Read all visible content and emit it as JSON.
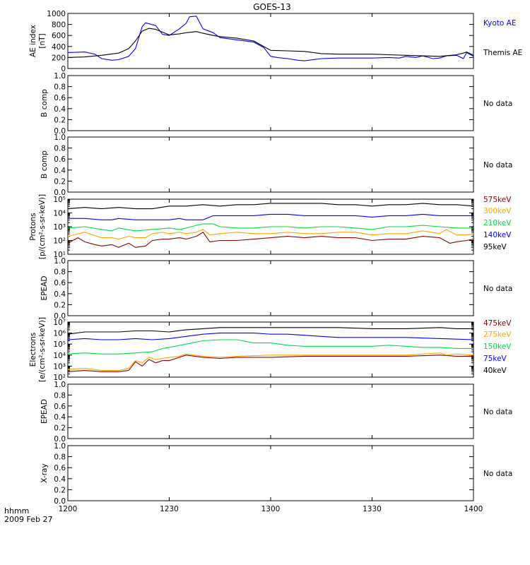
{
  "chart_data": {
    "type": "line",
    "title": "GOES-13",
    "x_axis": {
      "label_line1": "hhmm",
      "label_line2": "2009 Feb 27",
      "range": [
        1200,
        1400
      ],
      "ticks": [
        {
          "value": 1200,
          "label": "1200"
        },
        {
          "value": 1230,
          "label": "1230"
        },
        {
          "value": 1300,
          "label": "1300"
        },
        {
          "value": 1330,
          "label": "1330"
        },
        {
          "value": 1400,
          "label": "1400"
        }
      ]
    },
    "panels": [
      {
        "id": "ae",
        "ylabel_lines": [
          "AE index",
          "[nT]"
        ],
        "scale": "linear",
        "ylim": [
          0,
          1000
        ],
        "ticks": [
          "0",
          "200",
          "400",
          "600",
          "800",
          "1000"
        ],
        "tick_values": [
          0,
          200,
          400,
          600,
          800,
          1000
        ],
        "note": "",
        "series": [
          {
            "name": "Kyoto AE",
            "color": "#0000ff",
            "x": [
              1200,
              1205,
              1208,
              1210,
              1213,
              1215,
              1218,
              1220,
              1222,
              1223,
              1226,
              1228,
              1230,
              1233,
              1235,
              1236,
              1238,
              1240,
              1243,
              1245,
              1250,
              1255,
              1258,
              1300,
              1302,
              1305,
              1308,
              1310,
              1315,
              1320,
              1325,
              1330,
              1335,
              1338,
              1340,
              1343,
              1345,
              1348,
              1350,
              1352,
              1355,
              1357,
              1358,
              1400
            ],
            "values": [
              290,
              300,
              260,
              180,
              150,
              160,
              220,
              360,
              760,
              830,
              780,
              620,
              600,
              720,
              820,
              940,
              950,
              720,
              650,
              560,
              520,
              480,
              380,
              220,
              200,
              180,
              150,
              140,
              180,
              190,
              190,
              190,
              200,
              190,
              220,
              200,
              230,
              180,
              190,
              230,
              240,
              180,
              290,
              220
            ]
          },
          {
            "name": "Themis AE",
            "color": "#000000",
            "x": [
              1200,
              1205,
              1210,
              1215,
              1218,
              1220,
              1222,
              1224,
              1226,
              1228,
              1230,
              1233,
              1235,
              1238,
              1240,
              1243,
              1245,
              1250,
              1255,
              1300,
              1305,
              1310,
              1315,
              1320,
              1330,
              1335,
              1340,
              1345,
              1350,
              1355,
              1357,
              1358,
              1400
            ],
            "values": [
              200,
              210,
              240,
              280,
              360,
              500,
              680,
              730,
              710,
              660,
              610,
              630,
              650,
              670,
              640,
              600,
              580,
              550,
              500,
              330,
              320,
              310,
              270,
              260,
              260,
              250,
              240,
              230,
              220,
              250,
              280,
              300,
              240
            ]
          }
        ]
      },
      {
        "id": "b1",
        "ylabel_lines": [
          "B comp"
        ],
        "scale": "linear",
        "ylim": [
          0,
          1
        ],
        "ticks": [
          "0.0",
          "0.2",
          "0.4",
          "0.6",
          "0.8",
          "1.0"
        ],
        "tick_values": [
          0,
          0.2,
          0.4,
          0.6,
          0.8,
          1.0
        ],
        "note": "No data",
        "series": []
      },
      {
        "id": "b2",
        "ylabel_lines": [
          "B comp"
        ],
        "scale": "linear",
        "ylim": [
          0,
          1
        ],
        "ticks": [
          "0.0",
          "0.2",
          "0.4",
          "0.6",
          "0.8",
          "1.0"
        ],
        "tick_values": [
          0,
          0.2,
          0.4,
          0.6,
          0.8,
          1.0
        ],
        "note": "No data",
        "series": []
      },
      {
        "id": "protons",
        "ylabel_lines": [
          "Protons",
          "[p/(cm²-s-sr-keV)]"
        ],
        "scale": "log",
        "ylim": [
          1,
          5
        ],
        "ticks": [
          "10¹",
          "10²",
          "10³",
          "10⁴",
          "10⁵"
        ],
        "tick_values": [
          1,
          2,
          3,
          4,
          5
        ],
        "note": "",
        "series": [
          {
            "name": "575keV",
            "color": "#8b0000",
            "x": [
              1200,
              1203,
              1205,
              1208,
              1210,
              1213,
              1215,
              1218,
              1220,
              1223,
              1225,
              1228,
              1230,
              1233,
              1235,
              1238,
              1240,
              1242,
              1245,
              1248,
              1250,
              1255,
              1300,
              1305,
              1310,
              1315,
              1320,
              1325,
              1330,
              1335,
              1340,
              1345,
              1350,
              1353,
              1355,
              1358,
              1400
            ],
            "values": [
              1.8,
              2.2,
              1.9,
              1.7,
              1.6,
              1.7,
              1.5,
              1.8,
              1.5,
              1.6,
              2.0,
              2.1,
              2.1,
              2.2,
              2.1,
              2.3,
              2.6,
              1.9,
              2.0,
              2.0,
              2.0,
              2.1,
              2.2,
              2.3,
              2.2,
              2.3,
              2.2,
              2.2,
              2.0,
              2.1,
              2.1,
              2.3,
              2.2,
              1.8,
              1.9,
              2.0,
              2.1
            ]
          },
          {
            "name": "300keV",
            "color": "#ffa500",
            "x": [
              1200,
              1205,
              1210,
              1213,
              1215,
              1218,
              1220,
              1223,
              1225,
              1228,
              1230,
              1233,
              1235,
              1238,
              1240,
              1242,
              1245,
              1250,
              1255,
              1300,
              1305,
              1310,
              1315,
              1320,
              1325,
              1330,
              1335,
              1340,
              1345,
              1350,
              1352,
              1355,
              1358,
              1400
            ],
            "values": [
              2.3,
              2.6,
              2.2,
              2.2,
              2.1,
              2.3,
              2.2,
              2.2,
              2.5,
              2.6,
              2.5,
              2.6,
              2.5,
              2.6,
              2.8,
              2.4,
              2.5,
              2.6,
              2.5,
              2.5,
              2.6,
              2.5,
              2.5,
              2.6,
              2.6,
              2.4,
              2.5,
              2.5,
              2.7,
              2.5,
              2.8,
              2.4,
              2.4,
              2.5
            ]
          },
          {
            "name": "210keV",
            "color": "#00dd44",
            "x": [
              1200,
              1205,
              1210,
              1213,
              1215,
              1220,
              1225,
              1230,
              1233,
              1235,
              1238,
              1240,
              1243,
              1245,
              1250,
              1255,
              1300,
              1305,
              1310,
              1315,
              1320,
              1325,
              1330,
              1335,
              1340,
              1345,
              1350,
              1355,
              1358,
              1400
            ],
            "values": [
              2.9,
              3.0,
              2.8,
              2.7,
              2.9,
              2.7,
              2.8,
              2.9,
              2.8,
              2.9,
              3.1,
              3.2,
              3.2,
              3.0,
              2.9,
              2.9,
              3.0,
              3.0,
              2.9,
              3.0,
              3.0,
              2.9,
              2.8,
              3.0,
              3.0,
              3.1,
              3.0,
              2.9,
              2.9,
              2.9
            ]
          },
          {
            "name": "140keV",
            "color": "#0000ff",
            "x": [
              1200,
              1205,
              1210,
              1213,
              1215,
              1220,
              1225,
              1230,
              1233,
              1235,
              1240,
              1243,
              1245,
              1250,
              1255,
              1300,
              1305,
              1310,
              1315,
              1320,
              1325,
              1330,
              1335,
              1340,
              1345,
              1350,
              1355,
              1358,
              1400
            ],
            "values": [
              3.6,
              3.6,
              3.5,
              3.5,
              3.6,
              3.5,
              3.5,
              3.5,
              3.6,
              3.5,
              3.5,
              3.8,
              3.8,
              3.8,
              3.8,
              3.9,
              3.9,
              3.8,
              3.8,
              3.8,
              3.8,
              3.7,
              3.8,
              3.8,
              3.9,
              3.8,
              3.8,
              3.8,
              3.8
            ]
          },
          {
            "name": "95keV",
            "color": "#000000",
            "x": [
              1200,
              1205,
              1210,
              1215,
              1220,
              1225,
              1230,
              1235,
              1240,
              1245,
              1250,
              1255,
              1300,
              1305,
              1310,
              1315,
              1320,
              1325,
              1330,
              1335,
              1340,
              1345,
              1350,
              1355,
              1400
            ],
            "values": [
              4.3,
              4.4,
              4.3,
              4.4,
              4.3,
              4.3,
              4.5,
              4.5,
              4.6,
              4.5,
              4.6,
              4.6,
              4.7,
              4.7,
              4.7,
              4.7,
              4.6,
              4.6,
              4.5,
              4.6,
              4.6,
              4.7,
              4.6,
              4.6,
              4.5
            ]
          }
        ]
      },
      {
        "id": "epead1",
        "ylabel_lines": [
          "EPEAD"
        ],
        "scale": "linear",
        "ylim": [
          0,
          1
        ],
        "ticks": [
          "0.0",
          "0.2",
          "0.4",
          "0.6",
          "0.8",
          "1.0"
        ],
        "tick_values": [
          0,
          0.2,
          0.4,
          0.6,
          0.8,
          1.0
        ],
        "note": "No data",
        "series": []
      },
      {
        "id": "electrons",
        "ylabel_lines": [
          "Electrons",
          "[e/(cm²-s-sr-keV)]"
        ],
        "scale": "log",
        "ylim": [
          2,
          7
        ],
        "ticks": [
          "10²",
          "10³",
          "10⁴",
          "10⁵",
          "10⁶",
          "10⁷"
        ],
        "tick_values": [
          2,
          3,
          4,
          5,
          6,
          7
        ],
        "note": "",
        "series": [
          {
            "name": "475keV",
            "color": "#8b0000",
            "x": [
              1200,
              1205,
              1210,
              1215,
              1218,
              1220,
              1222,
              1224,
              1226,
              1228,
              1230,
              1233,
              1235,
              1240,
              1245,
              1250,
              1300,
              1310,
              1320,
              1330,
              1340,
              1350,
              1355,
              1400
            ],
            "values": [
              2.5,
              2.6,
              2.5,
              2.5,
              2.6,
              3.4,
              3.0,
              3.6,
              3.3,
              3.5,
              3.5,
              3.8,
              4.0,
              3.8,
              3.7,
              3.8,
              3.8,
              3.9,
              3.9,
              3.9,
              3.9,
              4.0,
              3.9,
              3.9
            ]
          },
          {
            "name": "275keV",
            "color": "#ffa500",
            "x": [
              1200,
              1205,
              1210,
              1215,
              1218,
              1220,
              1222,
              1224,
              1226,
              1228,
              1230,
              1233,
              1235,
              1240,
              1245,
              1250,
              1300,
              1310,
              1320,
              1330,
              1340,
              1350,
              1352,
              1355,
              1400
            ],
            "values": [
              2.7,
              2.8,
              2.6,
              2.6,
              2.8,
              3.5,
              3.3,
              3.8,
              3.6,
              3.7,
              3.8,
              3.9,
              4.1,
              3.9,
              3.8,
              3.9,
              4.0,
              4.0,
              4.0,
              4.0,
              4.0,
              4.2,
              4.0,
              4.1,
              4.0
            ]
          },
          {
            "name": "150keV",
            "color": "#00dd44",
            "x": [
              1200,
              1205,
              1210,
              1215,
              1220,
              1225,
              1228,
              1230,
              1235,
              1240,
              1245,
              1250,
              1255,
              1300,
              1305,
              1310,
              1315,
              1320,
              1325,
              1330,
              1335,
              1340,
              1345,
              1350,
              1355,
              1400
            ],
            "values": [
              4.1,
              4.2,
              4.1,
              4.1,
              4.2,
              4.3,
              4.6,
              4.7,
              5.0,
              5.3,
              5.4,
              5.4,
              5.1,
              5.1,
              4.9,
              4.8,
              4.8,
              4.8,
              4.8,
              4.8,
              4.9,
              4.8,
              4.7,
              4.7,
              4.6,
              4.6
            ]
          },
          {
            "name": "75keV",
            "color": "#0000ff",
            "x": [
              1200,
              1205,
              1210,
              1215,
              1220,
              1225,
              1230,
              1235,
              1240,
              1245,
              1250,
              1255,
              1300,
              1305,
              1310,
              1315,
              1320,
              1330,
              1340,
              1350,
              1400
            ],
            "values": [
              5.4,
              5.5,
              5.4,
              5.4,
              5.5,
              5.4,
              5.5,
              5.7,
              5.9,
              6.0,
              6.0,
              6.0,
              5.9,
              5.9,
              5.8,
              5.7,
              5.6,
              5.6,
              5.6,
              5.5,
              5.4
            ]
          },
          {
            "name": "40keV",
            "color": "#000000",
            "x": [
              1200,
              1205,
              1210,
              1215,
              1220,
              1225,
              1230,
              1235,
              1240,
              1245,
              1250,
              1300,
              1310,
              1320,
              1330,
              1340,
              1350,
              1355,
              1400
            ],
            "values": [
              5.9,
              6.1,
              6.1,
              6.1,
              6.2,
              6.2,
              6.1,
              6.3,
              6.4,
              6.5,
              6.5,
              6.5,
              6.5,
              6.5,
              6.4,
              6.4,
              6.5,
              6.4,
              6.4
            ]
          }
        ]
      },
      {
        "id": "epead2",
        "ylabel_lines": [
          "EPEAD"
        ],
        "scale": "linear",
        "ylim": [
          0,
          1
        ],
        "ticks": [
          "0.0",
          "0.2",
          "0.4",
          "0.6",
          "0.8",
          "1.0"
        ],
        "tick_values": [
          0,
          0.2,
          0.4,
          0.6,
          0.8,
          1.0
        ],
        "note": "No data",
        "series": []
      },
      {
        "id": "xray",
        "ylabel_lines": [
          "X-ray"
        ],
        "scale": "linear",
        "ylim": [
          0,
          1
        ],
        "ticks": [
          "0.0",
          "0.2",
          "0.4",
          "0.6",
          "0.8",
          "1.0"
        ],
        "tick_values": [
          0,
          0.2,
          0.4,
          0.6,
          0.8,
          1.0
        ],
        "note": "No data",
        "series": []
      }
    ]
  }
}
